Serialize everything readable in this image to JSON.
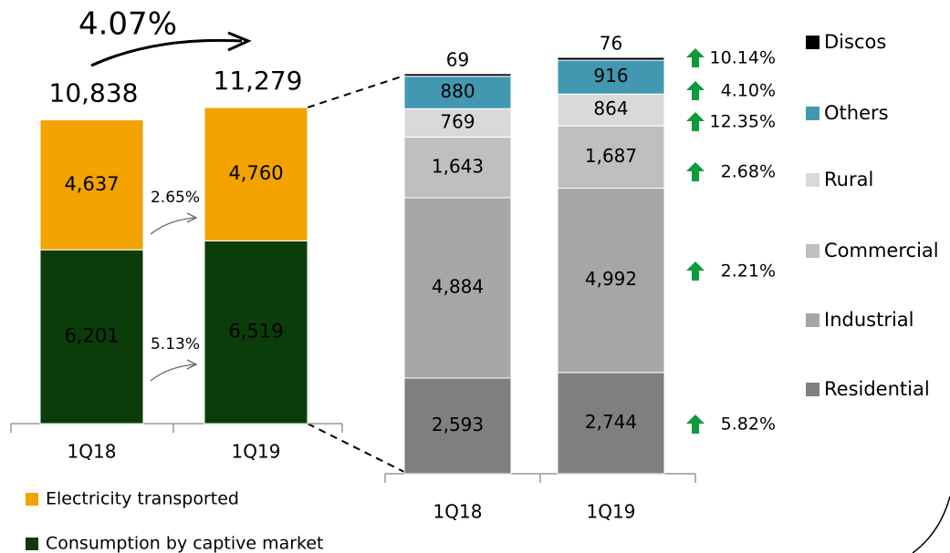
{
  "chart_data": [
    {
      "type": "stacked_bar",
      "annotation": "4.07%",
      "categories": [
        "1Q18",
        "1Q19"
      ],
      "totals": [
        10838,
        11279
      ],
      "total_labels": [
        "10,838",
        "11,279"
      ],
      "series": [
        {
          "name": "Consumption by captive market",
          "color": "#0b3d0b",
          "values": [
            6201,
            6519
          ],
          "value_labels": [
            "6,201",
            "6,519"
          ],
          "change": "5.13%"
        },
        {
          "name": "Electricity transported",
          "color": "#f2a300",
          "values": [
            4637,
            4760
          ],
          "value_labels": [
            "4,637",
            "4,760"
          ],
          "change": "2.65%"
        }
      ]
    },
    {
      "type": "stacked_bar",
      "categories": [
        "1Q18",
        "1Q19"
      ],
      "series": [
        {
          "name": "Residential",
          "color": "#7f7f7f",
          "values": [
            2593,
            2744
          ],
          "value_labels": [
            "2,593",
            "2,744"
          ],
          "change": "5.82%"
        },
        {
          "name": "Industrial",
          "color": "#a6a6a6",
          "values": [
            4884,
            4992
          ],
          "value_labels": [
            "4,884",
            "4,992"
          ],
          "change": "2.21%"
        },
        {
          "name": "Commercial",
          "color": "#bfbfbf",
          "values": [
            1643,
            1687
          ],
          "value_labels": [
            "1,643",
            "1,687"
          ],
          "change": "2.68%"
        },
        {
          "name": "Rural",
          "color": "#d9d9d9",
          "values": [
            769,
            864
          ],
          "value_labels": [
            "769",
            "864"
          ],
          "change": "12.35%"
        },
        {
          "name": "Others",
          "color": "#4298b1",
          "values": [
            880,
            916
          ],
          "value_labels": [
            "880",
            "916"
          ],
          "change": "4.10%"
        },
        {
          "name": "Discos",
          "color": "#000000",
          "values": [
            69,
            76
          ],
          "value_labels": [
            "69",
            "76"
          ],
          "change": "10.14%"
        }
      ]
    }
  ]
}
